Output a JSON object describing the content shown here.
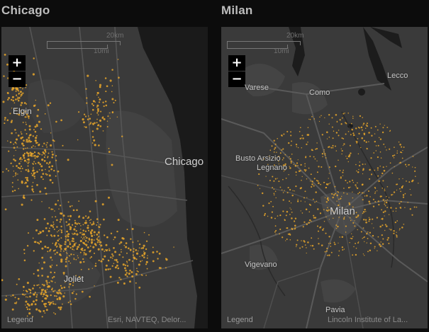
{
  "colors": {
    "background": "#0c0c0c",
    "map": "#3a3a3a",
    "land_alt": "#434343",
    "water": "#1a1a1a",
    "road": "#555555",
    "dots": "#e8a62a"
  },
  "maps": [
    {
      "title": "Chicago",
      "zoom_in": "+",
      "zoom_out": "−",
      "scale_km": "20km",
      "scale_mi": "10mi",
      "places": [
        "Elgin",
        "Chicago",
        "Joliet"
      ],
      "legend": "Legend",
      "attribution": "Esri, NAVTEQ, Delor..."
    },
    {
      "title": "Milan",
      "zoom_in": "+",
      "zoom_out": "−",
      "scale_km": "20km",
      "scale_mi": "10mi",
      "places": [
        "Varese",
        "Como",
        "Lecco",
        "Busto Arsizio",
        "Legnano",
        "Milan",
        "Vigevano",
        "Pavia"
      ],
      "legend": "Legend",
      "attribution": "Lincoln Institute of La..."
    }
  ]
}
